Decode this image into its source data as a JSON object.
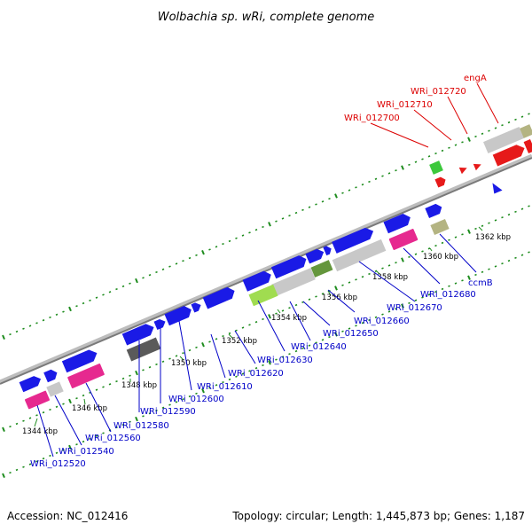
{
  "title": "Wolbachia sp. wRi, complete genome",
  "footer": {
    "accession": "Accession: NC_012416",
    "stats": "Topology: circular; Length: 1,445,873 bp; Genes: 1,187"
  },
  "colors": {
    "forward_cds": "#1a1ae6",
    "reverse_cds": "#e61a1a",
    "backbone": "#8c8c8c",
    "tick": "#1e8c1e",
    "label_blue": "#0000c8",
    "label_red": "#dc0000",
    "gc_pink": "#e6298f",
    "gc_grey": "#c8c8c8",
    "gc_dark": "#5a5a5a",
    "gc_khaki": "#b4b482",
    "gc_lime": "#a0dc50",
    "gc_olive": "#64963c",
    "gc_green": "#3cc83c"
  },
  "scale_labels": [
    "1344 kbp",
    "1346 kbp",
    "1348 kbp",
    "1350 kbp",
    "1352 kbp",
    "1354 kbp",
    "1356 kbp",
    "1358 kbp",
    "1360 kbp",
    "1362 kbp"
  ],
  "genes_forward": [
    "WRi_012520",
    "WRi_012540",
    "WRi_012560",
    "WRi_012580",
    "WRi_012590",
    "WRi_012600",
    "WRi_012610",
    "WRi_012620",
    "WRi_012630",
    "WRi_012640",
    "WRi_012650",
    "WRi_012660",
    "WRi_012670",
    "WRi_012680",
    "ccmB"
  ],
  "genes_reverse": [
    "WRi_012700",
    "WRi_012710",
    "WRi_012720",
    "engA"
  ]
}
